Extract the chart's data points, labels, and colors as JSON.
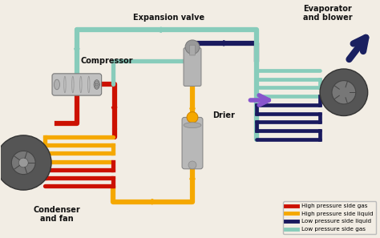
{
  "background_color": "#f2ede4",
  "labels": {
    "compressor": "Compressor",
    "expansion_valve": "Expansion valve",
    "evaporator": "Evaporator\nand blower",
    "condenser": "Condenser\nand fan",
    "drier": "Drier"
  },
  "legend": [
    {
      "label": "High pressure side gas",
      "color": "#cc1100"
    },
    {
      "label": "High pressure side liquid",
      "color": "#f5a800"
    },
    {
      "label": "Low pressure side liquid",
      "color": "#1a1a5e"
    },
    {
      "label": "Low pressure side gas",
      "color": "#88ccbb"
    }
  ],
  "colors": {
    "high_gas": "#cc1100",
    "high_liquid": "#f5a800",
    "low_liquid": "#1a1a5e",
    "low_gas": "#88ccbb",
    "arrow_blue": "#1a2a6e",
    "arrow_purple": "#8844bb",
    "metal_light": "#c8c8c8",
    "metal_dark": "#888888"
  },
  "lw": 4.5
}
